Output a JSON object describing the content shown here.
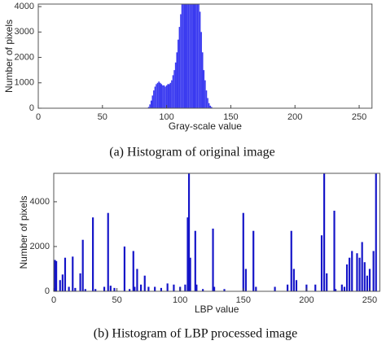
{
  "chart_data": [
    {
      "type": "bar",
      "x_label": "Gray-scale value",
      "y_label": "Number of pixels",
      "caption": "(a) Histogram of original image",
      "color": "#3a3af0",
      "x": [
        86,
        87,
        88,
        89,
        90,
        91,
        92,
        93,
        94,
        95,
        96,
        97,
        98,
        99,
        100,
        101,
        102,
        103,
        104,
        105,
        106,
        107,
        108,
        109,
        110,
        111,
        112,
        113,
        114,
        115,
        116,
        117,
        118,
        119,
        120,
        121,
        122,
        123,
        124,
        125,
        126,
        127,
        128,
        129,
        130,
        131,
        132,
        133,
        134,
        135
      ],
      "values": [
        50,
        150,
        300,
        500,
        700,
        850,
        950,
        1000,
        1050,
        1000,
        950,
        900,
        900,
        850,
        900,
        950,
        950,
        1000,
        1100,
        1300,
        1500,
        1800,
        2200,
        2700,
        3200,
        3700,
        4100,
        4100,
        4100,
        4100,
        4100,
        4100,
        4100,
        4100,
        4100,
        4100,
        4100,
        4100,
        4100,
        4100,
        3800,
        3000,
        2200,
        1500,
        1100,
        700,
        400,
        200,
        100,
        50
      ],
      "xlim": [
        0,
        260
      ],
      "ylim": [
        0,
        4100
      ],
      "xticks": [
        0,
        50,
        100,
        150,
        200,
        250
      ],
      "yticks": [
        0,
        1000,
        2000,
        3000,
        4000
      ]
    },
    {
      "type": "bar",
      "x_label": "LBP value",
      "y_label": "Number of pixels",
      "caption": "(b) Histogram of LBP processed image",
      "color": "#1414c8",
      "x": [
        1,
        2,
        5,
        7,
        9,
        12,
        15,
        17,
        21,
        23,
        25,
        31,
        33,
        40,
        43,
        45,
        48,
        56,
        60,
        63,
        64,
        66,
        69,
        72,
        75,
        80,
        85,
        90,
        95,
        100,
        104,
        106,
        107,
        108,
        112,
        113,
        118,
        126,
        127,
        135,
        150,
        152,
        158,
        160,
        175,
        185,
        188,
        190,
        192,
        200,
        207,
        212,
        214,
        216,
        222,
        223,
        228,
        230,
        232,
        234,
        236,
        240,
        242,
        244,
        246,
        248,
        250,
        253,
        255
      ],
      "values": [
        1400,
        1350,
        500,
        750,
        1500,
        200,
        1550,
        150,
        800,
        2300,
        100,
        3300,
        100,
        200,
        3500,
        250,
        150,
        2000,
        100,
        1800,
        200,
        1000,
        300,
        700,
        200,
        200,
        150,
        350,
        300,
        200,
        300,
        3300,
        5270,
        1500,
        2700,
        300,
        100,
        2800,
        200,
        100,
        3500,
        1000,
        2700,
        200,
        200,
        300,
        2700,
        1000,
        500,
        300,
        300,
        2500,
        5270,
        800,
        3600,
        100,
        300,
        200,
        1200,
        1500,
        1800,
        1700,
        1500,
        2200,
        1300,
        700,
        1000,
        1800,
        5270
      ],
      "xlim": [
        0,
        258
      ],
      "ylim": [
        0,
        5270
      ],
      "xticks": [
        0,
        50,
        100,
        150,
        200,
        250
      ],
      "yticks": [
        0,
        2000,
        4000
      ]
    }
  ]
}
